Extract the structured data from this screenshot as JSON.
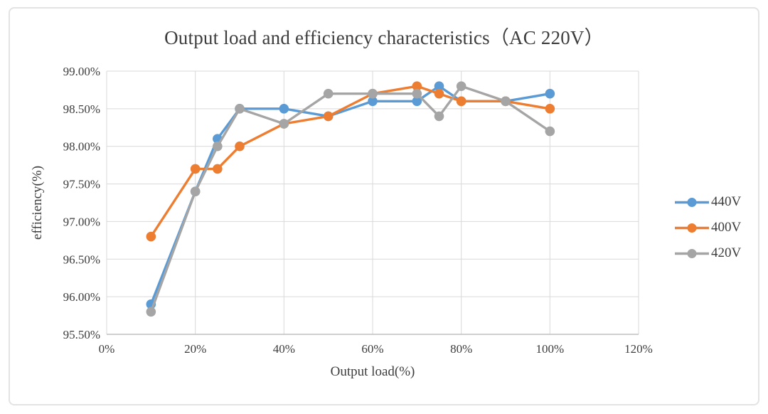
{
  "chart_data": {
    "type": "line",
    "title": "Output load and efficiency characteristics（AC 220V）",
    "xlabel": "Output load(%)",
    "ylabel": "efficiency(%)",
    "xlim": [
      0,
      120
    ],
    "ylim": [
      95.5,
      99.0
    ],
    "grid": true,
    "legend_position": "right",
    "x_ticks": [
      {
        "value": 0,
        "label": "0%"
      },
      {
        "value": 20,
        "label": "20%"
      },
      {
        "value": 40,
        "label": "40%"
      },
      {
        "value": 60,
        "label": "60%"
      },
      {
        "value": 80,
        "label": "80%"
      },
      {
        "value": 100,
        "label": "100%"
      },
      {
        "value": 120,
        "label": "120%"
      }
    ],
    "y_ticks": [
      {
        "value": 99.0,
        "label": "99.00%"
      },
      {
        "value": 98.5,
        "label": "98.50%"
      },
      {
        "value": 98.0,
        "label": "98.00%"
      },
      {
        "value": 97.5,
        "label": "97.50%"
      },
      {
        "value": 97.0,
        "label": "97.00%"
      },
      {
        "value": 96.5,
        "label": "96.50%"
      },
      {
        "value": 96.0,
        "label": "96.00%"
      },
      {
        "value": 95.5,
        "label": "95.50%"
      }
    ],
    "x": [
      10,
      20,
      25,
      30,
      40,
      50,
      60,
      70,
      75,
      80,
      90,
      100
    ],
    "series": [
      {
        "name": "440V",
        "color": "#5B9BD5",
        "values": [
          95.9,
          97.4,
          98.1,
          98.5,
          98.5,
          98.4,
          98.6,
          98.6,
          98.8,
          98.6,
          98.6,
          98.7
        ]
      },
      {
        "name": "400V",
        "color": "#ED7D31",
        "values": [
          96.8,
          97.7,
          97.7,
          98.0,
          98.3,
          98.4,
          98.7,
          98.8,
          98.7,
          98.6,
          98.6,
          98.5
        ]
      },
      {
        "name": "420V",
        "color": "#A5A5A5",
        "values": [
          95.8,
          97.4,
          98.0,
          98.5,
          98.3,
          98.7,
          98.7,
          98.7,
          98.4,
          98.8,
          98.6,
          98.2
        ]
      }
    ]
  }
}
